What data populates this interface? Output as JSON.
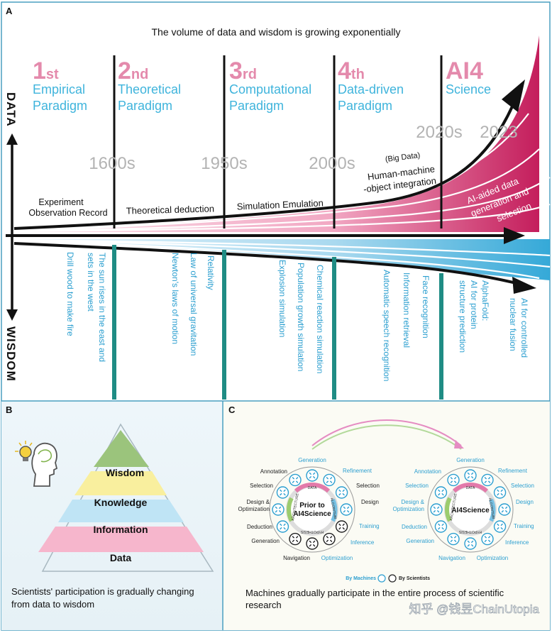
{
  "panel_a": {
    "label": "A",
    "headline": "The volume of data and wisdom is growing exponentially",
    "axis_up": "DATA",
    "axis_down": "WISDOM",
    "paradigms": [
      {
        "num": "1",
        "ord": "st",
        "line1": "Empirical",
        "line2": "Paradigm"
      },
      {
        "num": "2",
        "ord": "nd",
        "line1": "Theoretical",
        "line2": "Paradigm"
      },
      {
        "num": "3",
        "ord": "rd",
        "line1": "Computational",
        "line2": "Paradigm"
      },
      {
        "num": "4",
        "ord": "th",
        "line1": "Data-driven",
        "line2": "Paradigm"
      },
      {
        "num": "AI4",
        "ord": "",
        "line1": "Science",
        "line2": ""
      }
    ],
    "years": [
      "1600s",
      "1950s",
      "2000s",
      "2020s",
      "2023"
    ],
    "data_labels": {
      "experiment_1": "Experiment",
      "experiment_2": "Observation Record",
      "theory": "Theoretical deduction",
      "simulation": "Simulation Emulation",
      "big_data": "(Big Data)",
      "hmo_1": "Human-machine",
      "hmo_2": "-object integration",
      "ai_1": "AI-aided data",
      "ai_2": "generation and",
      "ai_3": "selection"
    },
    "wisdom_items": [
      "Drill wood to make fire",
      "The sun rises in the east and",
      "sets in the west",
      "Newton's laws of motion",
      "Law of universal gravitation",
      "Relativity",
      "Explosion simulation",
      "Population growth simulation",
      "Chemical reaction simulation",
      "Automatic speech recognition",
      "Information retrieval",
      "Face recognition",
      "AlphaFold:",
      "AI for protein",
      "structure prediction",
      "AI for controlled",
      "nuclear fusion"
    ]
  },
  "panel_b": {
    "label": "B",
    "levels": [
      "Wisdom",
      "Knowledge",
      "Information",
      "Data"
    ],
    "caption_1": "Scientists' participation is gradually changing",
    "caption_2": "from data to wisdom"
  },
  "panel_c": {
    "label": "C",
    "left_center_1": "Prior to",
    "left_center_2": "AI4Science",
    "right_center": "AI4Science",
    "ring_words": [
      "DATA",
      "ALGORITHM",
      "HYPOTHESIS",
      "ARCHITECTURE"
    ],
    "steps_top": "Generation",
    "steps_left": [
      "Annotation",
      "Selection",
      "Design &",
      "Optimization",
      "Deduction",
      "Generation"
    ],
    "steps_right": [
      "Refinement",
      "Selection",
      "Design",
      "Training",
      "Inference"
    ],
    "steps_bottom_left": "Navigation",
    "steps_bottom_right": "Optimization",
    "legend_machines": "By Machines",
    "legend_scientists": "By Scientists",
    "caption_1": "Machines gradually participate in the entire process of scientific",
    "caption_2": "research"
  },
  "watermark": "知乎 @钱昱ChainUtopia",
  "colors": {
    "pink": "#d6417a",
    "cyan": "#35a9d8",
    "teal": "#1f8c84",
    "magenta": "#c41e5c",
    "grey": "#b3b3b3"
  }
}
